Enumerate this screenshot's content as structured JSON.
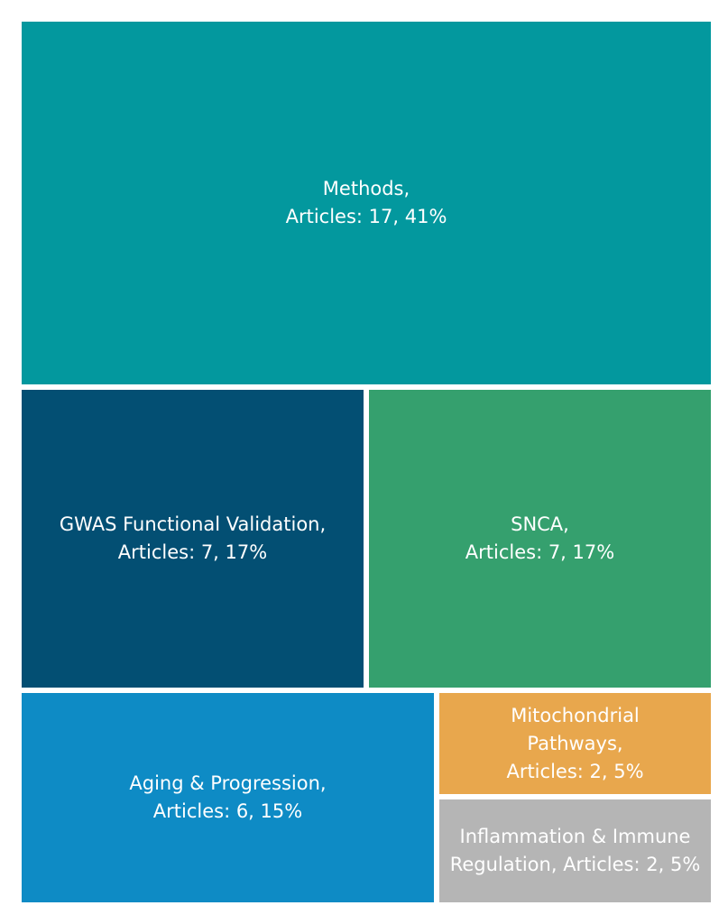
{
  "chart_data": {
    "type": "treemap",
    "categories": [
      "Methods",
      "GWAS Functional Validation",
      "SNCA",
      "Aging & Progression",
      "Mitochondrial Pathways",
      "Inflammation & Immune Regulation"
    ],
    "values": [
      17,
      7,
      7,
      6,
      2,
      2
    ],
    "percents": [
      41,
      17,
      17,
      15,
      5,
      5
    ],
    "colors": [
      "#03989e",
      "#034f73",
      "#35a06e",
      "#0e8bc5",
      "#e8a74d",
      "#b5b5b5"
    ],
    "labels": [
      [
        "Methods,",
        "Articles: 17, 41%"
      ],
      [
        "GWAS Functional Validation,",
        "Articles: 7, 17%"
      ],
      [
        "SNCA,",
        "Articles: 7, 17%"
      ],
      [
        "Aging & Progression,",
        "Articles: 6, 15%"
      ],
      [
        "Mitochondrial",
        "Pathways,",
        "Articles: 2, 5%"
      ],
      [
        "Inflammation & Immune",
        "Regulation, Articles: 2, 5%"
      ]
    ]
  }
}
